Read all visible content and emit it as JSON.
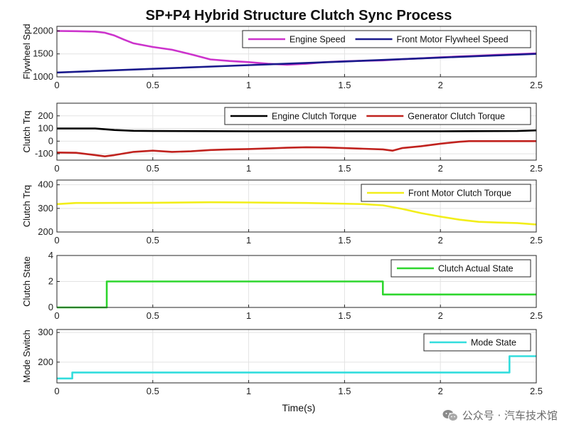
{
  "figure": {
    "title": "SP+P4 Hybrid Structure Clutch Sync Process",
    "xlabel": "Time(s)",
    "watermark": "公众号 · 汽车技术馆"
  },
  "colors": {
    "engine_speed": "#cc33cc",
    "front_motor_flywheel_speed": "#1a1a8c",
    "engine_clutch_torque": "#000000",
    "generator_clutch_torque": "#c0221e",
    "front_motor_clutch_torque": "#f2ee1a",
    "clutch_actual_state": "#2ed62e",
    "mode_state": "#33dddd"
  },
  "chart_data": [
    {
      "type": "line",
      "ylabel": "Flywheel Spd",
      "xlim": [
        0,
        2.5
      ],
      "ylim": [
        1000,
        2100
      ],
      "xticks": [
        0,
        0.5,
        1,
        1.5,
        2,
        2.5
      ],
      "xtick_labels": [
        "0",
        "0.5",
        "1",
        "1.5",
        "2",
        "2.5"
      ],
      "yticks": [
        1000,
        1500,
        2000
      ],
      "ytick_labels": [
        "1000",
        "1500",
        "2000"
      ],
      "grid": true,
      "legend": "top-right",
      "series": [
        {
          "name": "Engine Speed",
          "color": "engine_speed",
          "x": [
            0,
            0.1,
            0.2,
            0.25,
            0.3,
            0.35,
            0.4,
            0.5,
            0.6,
            0.7,
            0.8,
            0.9,
            1.0,
            1.1,
            1.2,
            1.3,
            1.4,
            1.5,
            1.6,
            1.7,
            1.8,
            1.9,
            2.0,
            2.1,
            2.2,
            2.3,
            2.4,
            2.5
          ],
          "y": [
            2000,
            1995,
            1985,
            1960,
            1900,
            1810,
            1730,
            1650,
            1590,
            1490,
            1380,
            1345,
            1320,
            1285,
            1265,
            1285,
            1320,
            1340,
            1350,
            1360,
            1385,
            1405,
            1425,
            1445,
            1460,
            1480,
            1495,
            1510
          ]
        },
        {
          "name": "Front Motor Flywheel Speed",
          "color": "front_motor_flywheel_speed",
          "x": [
            0,
            0.5,
            1.0,
            1.5,
            2.0,
            2.5
          ],
          "y": [
            1095,
            1175,
            1255,
            1335,
            1420,
            1500
          ]
        }
      ]
    },
    {
      "type": "line",
      "ylabel": "Clutch Trq",
      "xlim": [
        0,
        2.5
      ],
      "ylim": [
        -150,
        300
      ],
      "xticks": [
        0,
        0.5,
        1,
        1.5,
        2,
        2.5
      ],
      "xtick_labels": [
        "0",
        "0.5",
        "1",
        "1.5",
        "2",
        "2.5"
      ],
      "yticks": [
        -100,
        0,
        100,
        200
      ],
      "ytick_labels": [
        "-100",
        "0",
        "100",
        "200"
      ],
      "grid": true,
      "legend": "top-right",
      "series": [
        {
          "name": "Engine Clutch Torque",
          "color": "engine_clutch_torque",
          "x": [
            0,
            0.2,
            0.3,
            0.4,
            0.5,
            1.0,
            1.5,
            2.0,
            2.4,
            2.5
          ],
          "y": [
            100,
            100,
            88,
            82,
            80,
            78,
            78,
            78,
            80,
            85
          ]
        },
        {
          "name": "Generator Clutch Torque",
          "color": "generator_clutch_torque",
          "x": [
            0,
            0.1,
            0.2,
            0.25,
            0.3,
            0.4,
            0.5,
            0.6,
            0.7,
            0.8,
            0.9,
            1.0,
            1.1,
            1.2,
            1.3,
            1.4,
            1.5,
            1.6,
            1.7,
            1.75,
            1.8,
            1.9,
            2.0,
            2.1,
            2.15,
            2.2,
            2.5
          ],
          "y": [
            -90,
            -92,
            -110,
            -120,
            -110,
            -85,
            -75,
            -85,
            -80,
            -70,
            -65,
            -62,
            -58,
            -52,
            -48,
            -50,
            -55,
            -60,
            -65,
            -75,
            -55,
            -40,
            -20,
            -5,
            0,
            0,
            0
          ]
        }
      ]
    },
    {
      "type": "line",
      "ylabel": "Clutch Trq",
      "xlim": [
        0,
        2.5
      ],
      "ylim": [
        200,
        420
      ],
      "xticks": [
        0,
        0.5,
        1,
        1.5,
        2,
        2.5
      ],
      "xtick_labels": [
        "0",
        "0.5",
        "1",
        "1.5",
        "2",
        "2.5"
      ],
      "yticks": [
        200,
        300,
        400
      ],
      "ytick_labels": [
        "200",
        "300",
        "400"
      ],
      "grid": true,
      "legend": "top-right",
      "series": [
        {
          "name": "Front Motor Clutch Torque",
          "color": "front_motor_clutch_torque",
          "x": [
            0,
            0.1,
            0.5,
            0.8,
            1.0,
            1.3,
            1.6,
            1.7,
            1.8,
            1.9,
            2.0,
            2.1,
            2.2,
            2.3,
            2.4,
            2.5
          ],
          "y": [
            318,
            323,
            324,
            326,
            325,
            323,
            318,
            313,
            298,
            280,
            265,
            252,
            243,
            240,
            238,
            232
          ]
        }
      ]
    },
    {
      "type": "line",
      "ylabel": "Clutch State",
      "xlim": [
        0,
        2.5
      ],
      "ylim": [
        0,
        4
      ],
      "xticks": [
        0,
        0.5,
        1,
        1.5,
        2,
        2.5
      ],
      "xtick_labels": [
        "0",
        "0.5",
        "1",
        "1.5",
        "2",
        "2.5"
      ],
      "yticks": [
        0,
        2,
        4
      ],
      "ytick_labels": [
        "0",
        "2",
        "4"
      ],
      "grid": true,
      "legend": "top-right",
      "series": [
        {
          "name": "Clutch Actual State",
          "color": "clutch_actual_state",
          "x": [
            0,
            0.26,
            0.26,
            1.7,
            1.7,
            2.5
          ],
          "y": [
            0,
            0,
            2,
            2,
            1,
            1
          ]
        }
      ]
    },
    {
      "type": "line",
      "ylabel": "Mode Switch",
      "xlim": [
        0,
        2.5
      ],
      "ylim": [
        130,
        310
      ],
      "xticks": [
        0,
        0.5,
        1,
        1.5,
        2,
        2.5
      ],
      "xtick_labels": [
        "0",
        "0.5",
        "1",
        "1.5",
        "2",
        "2.5"
      ],
      "yticks": [
        200,
        300
      ],
      "ytick_labels": [
        "200",
        "300"
      ],
      "grid": true,
      "legend": "top-right",
      "series": [
        {
          "name": "Mode State",
          "color": "mode_state",
          "x": [
            0,
            0.08,
            0.08,
            2.36,
            2.36,
            2.5
          ],
          "y": [
            145,
            145,
            165,
            165,
            220,
            220
          ]
        }
      ]
    }
  ]
}
